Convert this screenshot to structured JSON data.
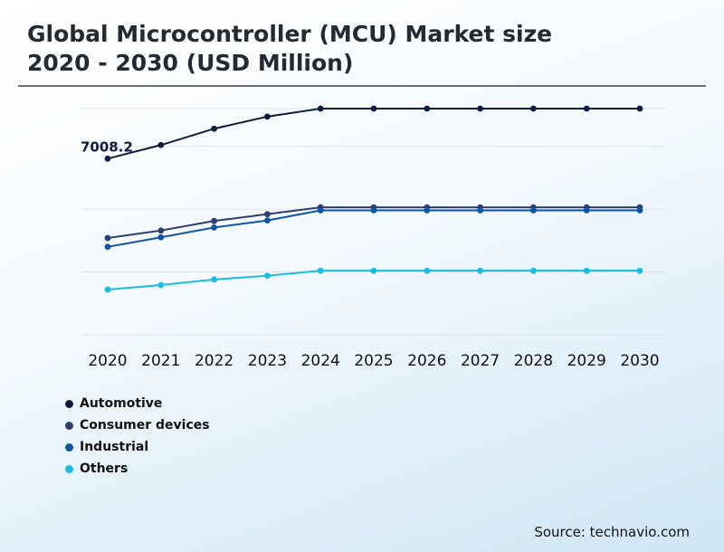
{
  "title_lines": [
    "Global Microcontroller (MCU) Market size",
    "2020 - 2030 (USD Million)"
  ],
  "source": "Source: technavio.com",
  "chart_data": {
    "type": "line",
    "title": "Global Microcontroller (MCU) Market size 2020 - 2030 (USD Million)",
    "x": [
      "2020",
      "2021",
      "2022",
      "2023",
      "2024",
      "2025",
      "2026",
      "2027",
      "2028",
      "2029",
      "2030"
    ],
    "ylim": [
      0,
      9000
    ],
    "grid": true,
    "legend_position": "bottom-left",
    "annotations": [
      {
        "series": "Automotive",
        "x": "2020",
        "label": "7008.2"
      }
    ],
    "series": [
      {
        "name": "Automotive",
        "color": "#0c1d40",
        "values": [
          7008.2,
          7550,
          8200,
          8680,
          9000,
          9000,
          9000,
          9000,
          9000,
          9000,
          9000
        ]
      },
      {
        "name": "Consumer devices",
        "color": "#2c3f6e",
        "values": [
          3850,
          4150,
          4530,
          4800,
          5070,
          5070,
          5070,
          5070,
          5070,
          5070,
          5070
        ]
      },
      {
        "name": "Industrial",
        "color": "#0d56a6",
        "values": [
          3500,
          3880,
          4270,
          4550,
          4950,
          4950,
          4950,
          4950,
          4950,
          4950,
          4950
        ]
      },
      {
        "name": "Others",
        "color": "#18bde0",
        "values": [
          1800,
          1980,
          2200,
          2350,
          2550,
          2550,
          2550,
          2550,
          2550,
          2550,
          2550
        ]
      }
    ]
  }
}
